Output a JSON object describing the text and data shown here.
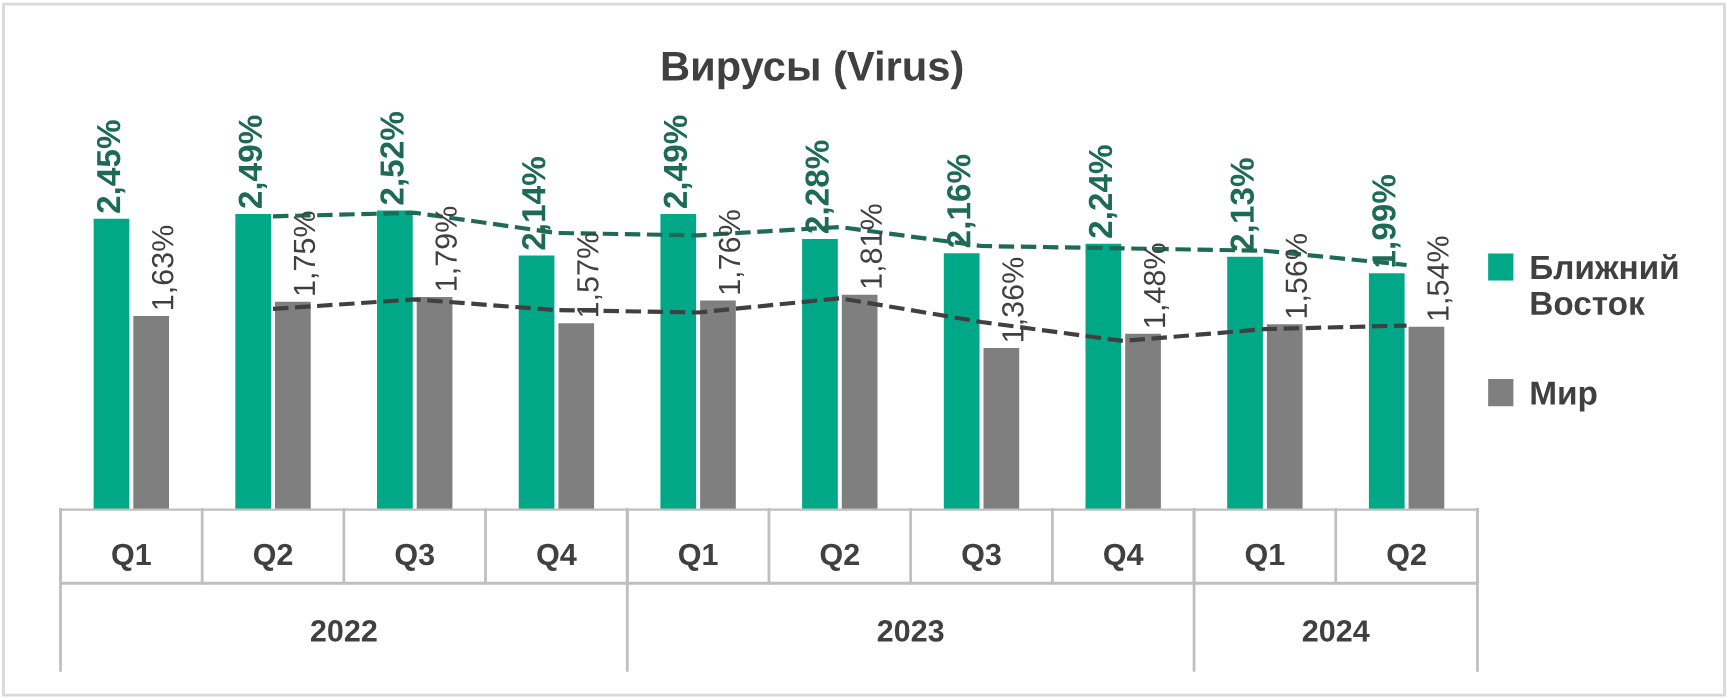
{
  "chart_data": {
    "type": "bar",
    "title": "Вирусы (Virus)",
    "categories": [
      "Q1",
      "Q2",
      "Q3",
      "Q4",
      "Q1",
      "Q2",
      "Q3",
      "Q4",
      "Q1",
      "Q2"
    ],
    "series": [
      {
        "name": "Ближний Восток",
        "color": "#00a887",
        "values": [
          2.45,
          2.49,
          2.52,
          2.14,
          2.49,
          2.28,
          2.16,
          2.24,
          2.13,
          1.99
        ],
        "value_labels": [
          "2,45%",
          "2,49%",
          "2,52%",
          "2,14%",
          "2,49%",
          "2,28%",
          "2,16%",
          "2,24%",
          "2,13%",
          "1,99%"
        ]
      },
      {
        "name": "Мир",
        "color": "#7f7f7f",
        "values": [
          1.63,
          1.75,
          1.79,
          1.57,
          1.76,
          1.81,
          1.36,
          1.48,
          1.56,
          1.54
        ],
        "value_labels": [
          "1,63%",
          "1,75%",
          "1,79%",
          "1,57%",
          "1,76%",
          "1,81%",
          "1,36%",
          "1,48%",
          "1,56%",
          "1,54%"
        ]
      },
      {
        "type": "line",
        "color": "#1e6b55",
        "line_style": "dashed",
        "values": [
          null,
          2.47,
          2.5,
          2.33,
          2.31,
          2.38,
          2.22,
          2.2,
          2.18,
          2.06
        ]
      },
      {
        "type": "line",
        "color": "#404040",
        "line_style": "dashed",
        "values": [
          null,
          1.69,
          1.77,
          1.68,
          1.66,
          1.78,
          1.58,
          1.42,
          1.52,
          1.55
        ]
      }
    ],
    "annotations": [
      "2022",
      "2023",
      "2024"
    ],
    "legend": "right",
    "grid": false
  }
}
